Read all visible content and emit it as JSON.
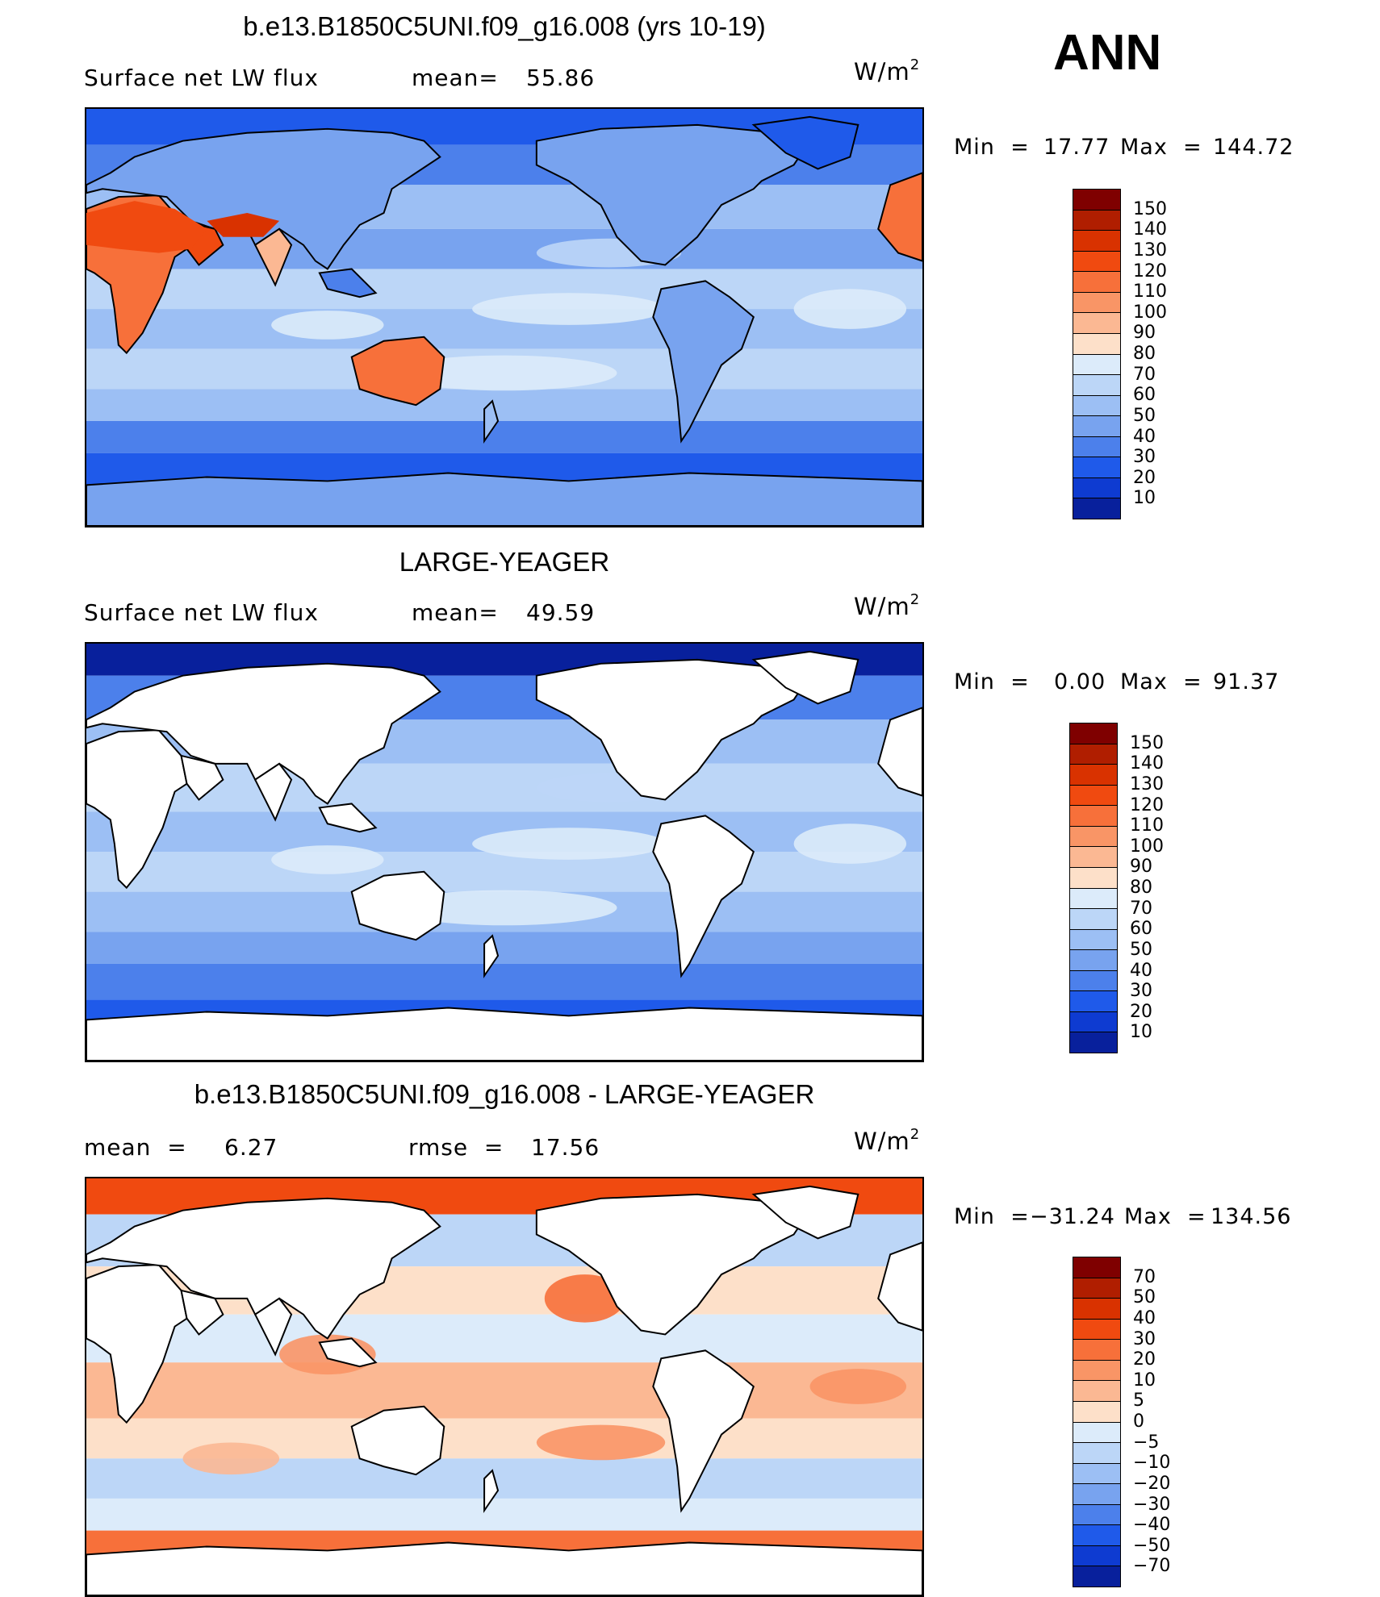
{
  "season": "ANN",
  "panels": [
    {
      "title": "b.e13.B1850C5UNI.f09_g16.008 (yrs 10-19)",
      "left_label": "Surface net LW flux",
      "stat1_label": "mean=",
      "stat1_value": "55.86",
      "stat2_label": "",
      "stat2_value": "",
      "units": "W/m",
      "units_exp": "2",
      "min_label": "Min  =",
      "min_value": "17.77",
      "max_label": "Max  =",
      "max_value": "144.72",
      "colorbar": {
        "labels": [
          "150",
          "140",
          "130",
          "120",
          "110",
          "100",
          "90",
          "80",
          "70",
          "60",
          "50",
          "40",
          "30",
          "20",
          "10"
        ],
        "colors": [
          "#7f0000",
          "#b01e00",
          "#d93200",
          "#f04a10",
          "#f7703a",
          "#f99566",
          "#fbb893",
          "#fde0c9",
          "#dcebfa",
          "#bcd6f7",
          "#9cbff4",
          "#78a3ef",
          "#4c80eb",
          "#1f5aea",
          "#0e3bd1",
          "#08209c"
        ]
      },
      "map_style": "field"
    },
    {
      "title": "LARGE-YEAGER",
      "left_label": "Surface net LW flux",
      "stat1_label": "mean=",
      "stat1_value": "49.59",
      "stat2_label": "",
      "stat2_value": "",
      "units": "W/m",
      "units_exp": "2",
      "min_label": "Min  =",
      "min_value": "0.00",
      "max_label": "Max  =",
      "max_value": "91.37",
      "colorbar": {
        "labels": [
          "150",
          "140",
          "130",
          "120",
          "110",
          "100",
          "90",
          "80",
          "70",
          "60",
          "50",
          "40",
          "30",
          "20",
          "10"
        ],
        "colors": [
          "#7f0000",
          "#b01e00",
          "#d93200",
          "#f04a10",
          "#f7703a",
          "#f99566",
          "#fbb893",
          "#fde0c9",
          "#dcebfa",
          "#bcd6f7",
          "#9cbff4",
          "#78a3ef",
          "#4c80eb",
          "#1f5aea",
          "#0e3bd1",
          "#08209c"
        ]
      },
      "map_style": "ocean"
    },
    {
      "title": "b.e13.B1850C5UNI.f09_g16.008 - LARGE-YEAGER",
      "left_label": "mean  =",
      "stat1_label": "6.27",
      "stat1_value": "",
      "stat2_label": "rmse  =",
      "stat2_value": "17.56",
      "units": "W/m",
      "units_exp": "2",
      "min_label": "Min  =",
      "min_value": "−31.24",
      "max_label": "Max  =",
      "max_value": "134.56",
      "colorbar": {
        "labels": [
          "70",
          "50",
          "40",
          "30",
          "20",
          "10",
          "5",
          "0",
          "−5",
          "−10",
          "−20",
          "−30",
          "−40",
          "−50",
          "−70"
        ],
        "colors": [
          "#7f0000",
          "#b01e00",
          "#d93200",
          "#f04a10",
          "#f7703a",
          "#f99566",
          "#fbb893",
          "#fde0c9",
          "#dcebfa",
          "#bcd6f7",
          "#9cbff4",
          "#78a3ef",
          "#4c80eb",
          "#1f5aea",
          "#0e3bd1",
          "#08209c"
        ]
      },
      "map_style": "diff"
    }
  ]
}
